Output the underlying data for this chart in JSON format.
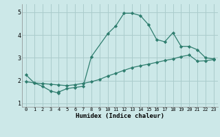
{
  "xlabel": "Humidex (Indice chaleur)",
  "background_color": "#cce8e8",
  "grid_color": "#aacccc",
  "line_color": "#2e7d6e",
  "xlim": [
    -0.5,
    23.5
  ],
  "ylim": [
    0.85,
    5.35
  ],
  "yticks": [
    1,
    2,
    3,
    4,
    5
  ],
  "xticks": [
    0,
    1,
    2,
    3,
    4,
    5,
    6,
    7,
    8,
    9,
    10,
    11,
    12,
    13,
    14,
    15,
    16,
    17,
    18,
    19,
    20,
    21,
    22,
    23
  ],
  "curve1_x": [
    0,
    1,
    2,
    3,
    4,
    4,
    5,
    6,
    7,
    8,
    10,
    11,
    12,
    13,
    14,
    15,
    16,
    17,
    18,
    19,
    20,
    21,
    22,
    23
  ],
  "curve1_y": [
    2.25,
    1.9,
    1.75,
    1.55,
    1.45,
    1.5,
    1.65,
    1.7,
    1.75,
    3.05,
    4.05,
    4.4,
    4.95,
    4.95,
    4.85,
    4.45,
    3.8,
    3.7,
    4.1,
    3.5,
    3.5,
    3.35,
    3.0,
    2.95
  ],
  "curve2_x": [
    0,
    1,
    2,
    3,
    4,
    5,
    6,
    7,
    8,
    9,
    10,
    11,
    12,
    13,
    14,
    15,
    16,
    17,
    18,
    19,
    20,
    21,
    22,
    23
  ],
  "curve2_y": [
    1.95,
    1.9,
    1.87,
    1.84,
    1.81,
    1.78,
    1.82,
    1.88,
    1.95,
    2.05,
    2.2,
    2.32,
    2.45,
    2.57,
    2.65,
    2.72,
    2.8,
    2.88,
    2.95,
    3.05,
    3.12,
    2.85,
    2.87,
    2.92
  ]
}
